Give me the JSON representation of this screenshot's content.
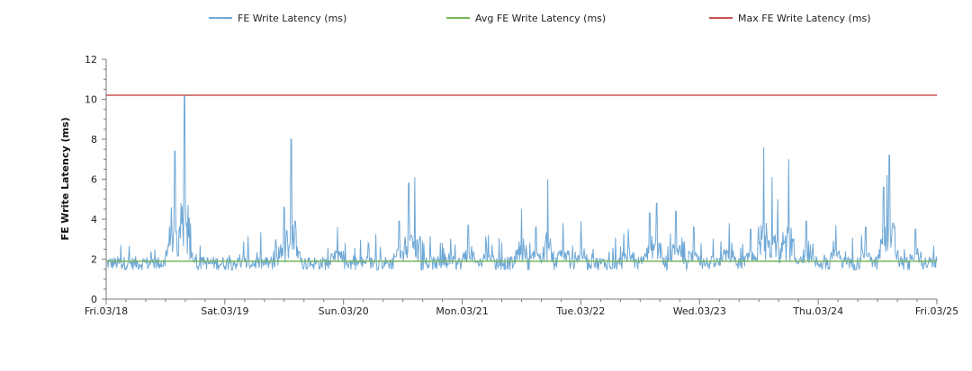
{
  "chart_data": {
    "type": "line",
    "ylabel": "FE Write Latency (ms)",
    "xlabel": "",
    "ylim": [
      0,
      12
    ],
    "yticks": [
      0,
      2,
      4,
      6,
      8,
      10,
      12
    ],
    "x_tick_labels": [
      "Fri.03/18",
      "Sat.03/19",
      "Sun.03/20",
      "Mon.03/21",
      "Tue.03/22",
      "Wed.03/23",
      "Thu.03/24",
      "Fri.03/25"
    ],
    "x_range_days": [
      0,
      7
    ],
    "legend_position": "top",
    "grid": false,
    "series": [
      {
        "name": "FE Write Latency (ms)",
        "color": "#6fa8d6",
        "baseline": 1.8,
        "peaks": [
          {
            "x": 0.55,
            "y": 4.6
          },
          {
            "x": 0.58,
            "y": 7.4
          },
          {
            "x": 0.63,
            "y": 4.8
          },
          {
            "x": 0.66,
            "y": 10.2
          },
          {
            "x": 0.71,
            "y": 3.8
          },
          {
            "x": 1.5,
            "y": 4.6
          },
          {
            "x": 1.56,
            "y": 8.0
          },
          {
            "x": 1.59,
            "y": 3.9
          },
          {
            "x": 1.95,
            "y": 3.6
          },
          {
            "x": 2.47,
            "y": 3.9
          },
          {
            "x": 2.55,
            "y": 5.8
          },
          {
            "x": 2.6,
            "y": 6.1
          },
          {
            "x": 3.05,
            "y": 3.7
          },
          {
            "x": 3.22,
            "y": 3.2
          },
          {
            "x": 3.5,
            "y": 4.5
          },
          {
            "x": 3.62,
            "y": 3.6
          },
          {
            "x": 3.72,
            "y": 6.0
          },
          {
            "x": 3.85,
            "y": 3.8
          },
          {
            "x": 4.0,
            "y": 3.9
          },
          {
            "x": 4.4,
            "y": 3.5
          },
          {
            "x": 4.58,
            "y": 4.3
          },
          {
            "x": 4.64,
            "y": 4.8
          },
          {
            "x": 4.8,
            "y": 4.4
          },
          {
            "x": 4.95,
            "y": 3.6
          },
          {
            "x": 5.25,
            "y": 3.8
          },
          {
            "x": 5.43,
            "y": 3.5
          },
          {
            "x": 5.54,
            "y": 7.6
          },
          {
            "x": 5.61,
            "y": 6.1
          },
          {
            "x": 5.66,
            "y": 5.0
          },
          {
            "x": 5.75,
            "y": 7.0
          },
          {
            "x": 5.9,
            "y": 3.9
          },
          {
            "x": 6.15,
            "y": 3.7
          },
          {
            "x": 6.4,
            "y": 3.6
          },
          {
            "x": 6.55,
            "y": 5.6
          },
          {
            "x": 6.58,
            "y": 6.2
          },
          {
            "x": 6.6,
            "y": 7.2
          },
          {
            "x": 6.63,
            "y": 3.8
          },
          {
            "x": 6.82,
            "y": 3.5
          }
        ]
      },
      {
        "name": "Avg FE Write Latency (ms)",
        "color": "#77b55a",
        "values_constant": 1.9
      },
      {
        "name": "Max FE Write Latency (ms)",
        "color": "#c9534f",
        "values_constant": 10.2
      }
    ]
  }
}
